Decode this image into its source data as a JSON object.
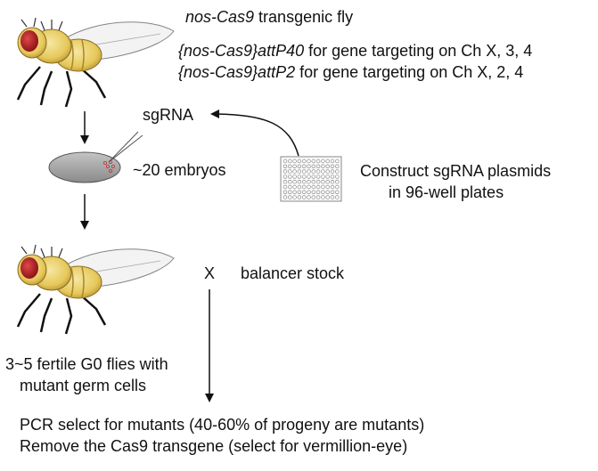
{
  "header": {
    "line1_italic": "nos-Cas9",
    "line1_rest": " transgenic fly",
    "line2_italic": "{nos-Cas9}attP40",
    "line2_rest": " for gene targeting on Ch X, 3, 4",
    "line3_italic": "{nos-Cas9}attP2",
    "line3_rest": " for gene targeting on Ch X, 2, 4"
  },
  "sgrna_label": "sgRNA",
  "embryos_label": "~20 embryos",
  "plasmid": {
    "line1": "Construct sgRNA plasmids",
    "line2": "in 96-well plates"
  },
  "cross": {
    "symbol": "X",
    "label": "balancer stock"
  },
  "g0": {
    "line1": "3~5 fertile G0 flies with",
    "line2": "mutant germ cells"
  },
  "bottom": {
    "line1": "PCR select for mutants (40-60% of progeny are mutants)",
    "line2": "Remove the Cas9 transgene (select for vermillion-eye)"
  },
  "colors": {
    "body": "#e8cf6a",
    "eye": "#c0262a",
    "stroke": "#111111",
    "embryo": "#9a9a9a"
  }
}
